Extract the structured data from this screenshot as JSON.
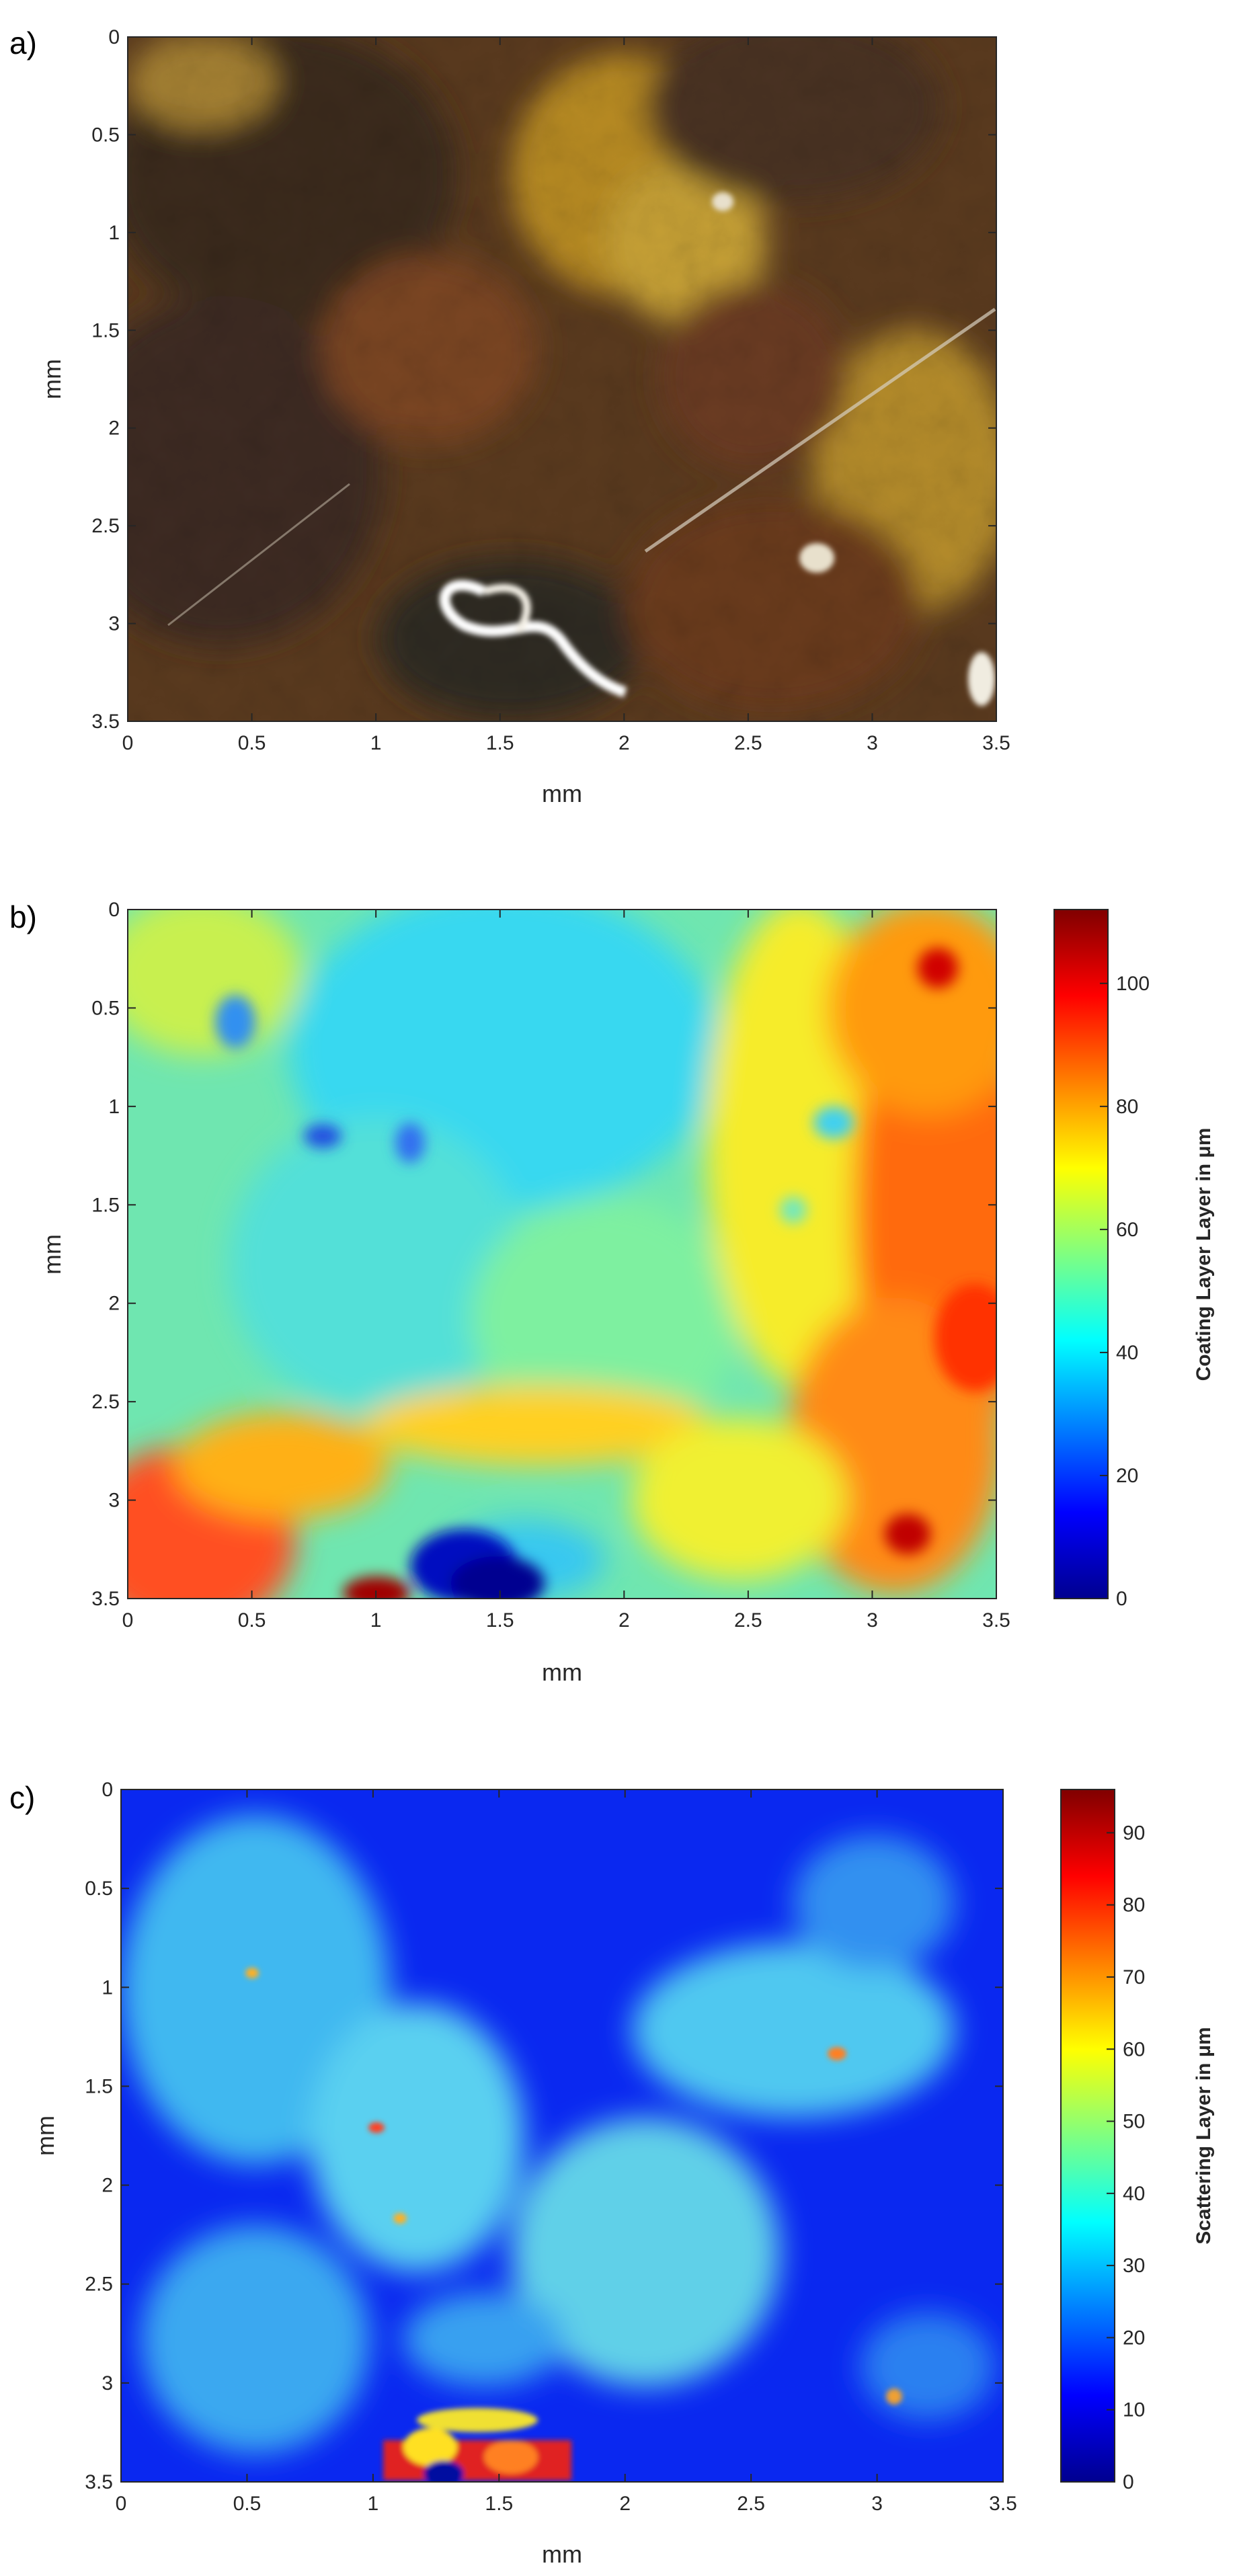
{
  "chart_data": [
    {
      "type": "heatmap",
      "panel_label": "a)",
      "description_kind": "microscope photograph",
      "xlabel": "mm",
      "ylabel": "mm",
      "xlim": [
        0,
        3.5
      ],
      "ylim": [
        3.5,
        0
      ],
      "xticks": [
        "0",
        "0.5",
        "1",
        "1.5",
        "2",
        "2.5",
        "3",
        "3.5"
      ],
      "yticks": [
        "0",
        "0.5",
        "1",
        "1.5",
        "2",
        "2.5",
        "3",
        "3.5"
      ],
      "colorbar": null
    },
    {
      "type": "heatmap",
      "panel_label": "b)",
      "xlabel": "mm",
      "ylabel": "mm",
      "xlim": [
        0,
        3.5
      ],
      "ylim": [
        3.5,
        0
      ],
      "xticks": [
        "0",
        "0.5",
        "1",
        "1.5",
        "2",
        "2.5",
        "3",
        "3.5"
      ],
      "yticks": [
        "0",
        "0.5",
        "1",
        "1.5",
        "2",
        "2.5",
        "3",
        "3.5"
      ],
      "colorbar": {
        "label": "Coating Layer Layer in μm",
        "range": [
          0,
          112
        ],
        "ticks": [
          "0",
          "20",
          "40",
          "60",
          "80",
          "100"
        ],
        "colormap": "jet"
      }
    },
    {
      "type": "heatmap",
      "panel_label": "c)",
      "xlabel": "mm",
      "ylabel": "mm",
      "xlim": [
        0,
        3.5
      ],
      "ylim": [
        3.5,
        0
      ],
      "xticks": [
        "0",
        "0.5",
        "1",
        "1.5",
        "2",
        "2.5",
        "3",
        "3.5"
      ],
      "yticks": [
        "0",
        "0.5",
        "1",
        "1.5",
        "2",
        "2.5",
        "3",
        "3.5"
      ],
      "colorbar": {
        "label": "Scattering Layer in μm",
        "range": [
          0,
          96
        ],
        "ticks": [
          "0",
          "10",
          "20",
          "30",
          "40",
          "50",
          "60",
          "70",
          "80",
          "90"
        ],
        "colormap": "jet"
      }
    }
  ]
}
